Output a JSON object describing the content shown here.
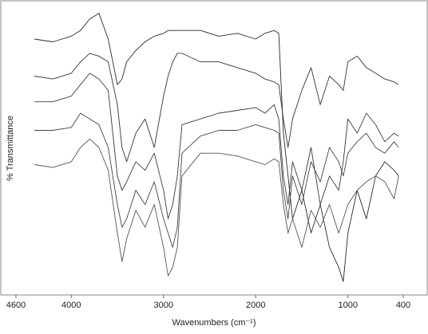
{
  "chart_data": {
    "type": "line",
    "x_label": "Wavenumbers (cm⁻¹)",
    "y_label": "% Transmittance",
    "xlim": [
      4600,
      400
    ],
    "ylim": [
      0,
      100
    ],
    "xticks": [
      4600,
      4000,
      3000,
      2000,
      1000,
      400
    ],
    "x": [
      4400,
      4200,
      4000,
      3900,
      3800,
      3700,
      3600,
      3500,
      3450,
      3400,
      3300,
      3200,
      3100,
      3000,
      2950,
      2900,
      2850,
      2800,
      2600,
      2400,
      2200,
      2000,
      1900,
      1800,
      1750,
      1700,
      1650,
      1600,
      1500,
      1400,
      1300,
      1200,
      1100,
      1050,
      1000,
      900,
      800,
      700,
      600,
      500,
      450
    ],
    "series": [
      {
        "color": "#2a2a2a",
        "values": [
          88,
          87,
          89,
          91,
          95,
          97,
          88,
          72,
          74,
          80,
          84,
          87,
          89,
          90,
          91,
          91,
          91,
          91,
          91,
          89,
          90,
          88,
          90,
          91,
          90,
          55,
          40,
          25,
          35,
          20,
          30,
          15,
          8,
          3,
          20,
          35,
          25,
          40,
          45,
          42,
          40
        ]
      },
      {
        "color": "#333333",
        "values": [
          75,
          74,
          76,
          80,
          83,
          82,
          80,
          65,
          50,
          45,
          55,
          60,
          50,
          68,
          75,
          80,
          83,
          83,
          80,
          80,
          78,
          76,
          74,
          73,
          72,
          60,
          50,
          60,
          70,
          78,
          65,
          75,
          72,
          70,
          80,
          82,
          78,
          76,
          74,
          73,
          72
        ]
      },
      {
        "color": "#3a3a3a",
        "values": [
          66,
          66,
          68,
          72,
          76,
          74,
          70,
          40,
          35,
          38,
          45,
          42,
          48,
          35,
          25,
          30,
          40,
          58,
          60,
          62,
          63,
          64,
          62,
          65,
          60,
          40,
          30,
          45,
          35,
          50,
          30,
          40,
          35,
          45,
          60,
          55,
          62,
          58,
          52,
          55,
          54
        ]
      },
      {
        "color": "#444444",
        "values": [
          56,
          56,
          57,
          62,
          60,
          58,
          50,
          30,
          22,
          25,
          35,
          30,
          38,
          25,
          20,
          15,
          22,
          48,
          54,
          56,
          56,
          58,
          57,
          56,
          55,
          35,
          25,
          40,
          30,
          45,
          38,
          50,
          45,
          40,
          48,
          52,
          55,
          50,
          48,
          52,
          50
        ]
      },
      {
        "color": "#555555",
        "values": [
          44,
          43,
          45,
          50,
          53,
          50,
          42,
          20,
          10,
          18,
          28,
          22,
          30,
          15,
          5,
          8,
          15,
          40,
          48,
          48,
          47,
          45,
          44,
          46,
          45,
          30,
          20,
          25,
          15,
          28,
          22,
          30,
          20,
          25,
          30,
          35,
          38,
          40,
          38,
          32,
          40
        ]
      }
    ]
  }
}
